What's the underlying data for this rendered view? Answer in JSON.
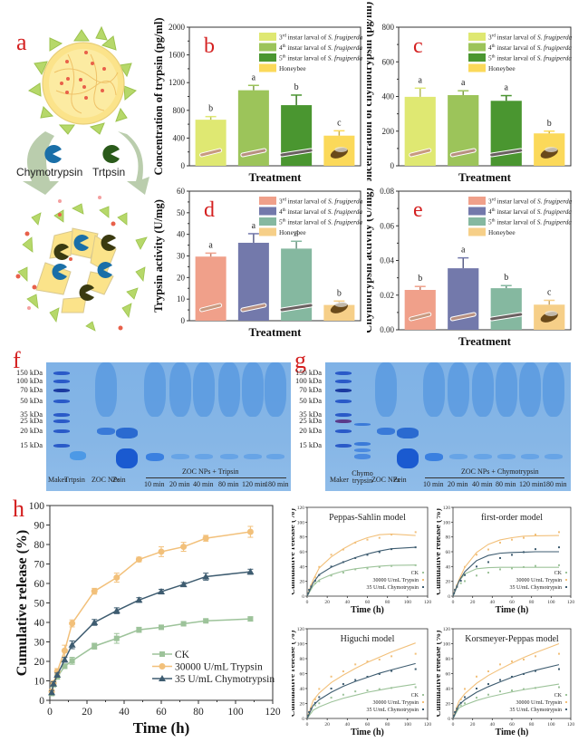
{
  "panels": {
    "a": {
      "letter": "a",
      "labels": [
        "Chymotrypsin",
        "Trtpsin"
      ],
      "icons": [
        "zein-nanoparticle-icon",
        "enzyme-pacman-icon",
        "degraded-nanoparticle-icon"
      ]
    },
    "f": {
      "letter": "f",
      "markers": [
        "150 kDa",
        "100 kDa",
        "70 kDa",
        "50 kDa",
        "35 kDa",
        "25 kDa",
        "20 kDa",
        "15 kDa"
      ],
      "lanes": [
        "Maker",
        "Trtpsin",
        "ZOC NPs",
        "Zein"
      ],
      "group_label": "ZOC NPs + Tripsin",
      "times": [
        "10 min",
        "20 min",
        "40 min",
        "80 min",
        "120 min",
        "180 min"
      ]
    },
    "g": {
      "letter": "g",
      "markers": [
        "150 kDa",
        "100 kDa",
        "70 kDa",
        "50 kDa",
        "35 kDa",
        "25 kDa",
        "20 kDa",
        "15 kDa"
      ],
      "lanes": [
        "Maker",
        "Chymo trypsin",
        "ZOC NPs",
        "Zein"
      ],
      "group_label": "ZOC NPs + Chymotrypsin",
      "times": [
        "10 min",
        "20 min",
        "40 min",
        "80 min",
        "120 min",
        "180 min"
      ]
    }
  },
  "chart_data": [
    {
      "id": "b",
      "letter": "b",
      "type": "bar",
      "title": "",
      "xlabel": "Treatment",
      "ylabel": "Concentration of trypsin (pg/ml)",
      "ylim": [
        0,
        2000
      ],
      "yticks": [
        0,
        400,
        800,
        1200,
        1600,
        2000
      ],
      "categories": [
        "3rd instar larval of S. frugiperda",
        "4th instar larval of S. frugiperda",
        "5th instar larval of S. frugiperda",
        "Honeybee"
      ],
      "legend": [
        {
          "pre": "3",
          "sup": "rd",
          "text": " instar larval of ",
          "ital": "S. frugiperda",
          "color": "#dfe872"
        },
        {
          "pre": "4",
          "sup": "th",
          "text": " instar larval of ",
          "ital": "S. frugiperda",
          "color": "#9cc45a"
        },
        {
          "pre": "5",
          "sup": "th",
          "text": " instar larval of ",
          "ital": "S. frugiperda",
          "color": "#4a9630"
        },
        {
          "pre": "Honeybee",
          "sup": "",
          "text": "",
          "ital": "",
          "color": "#fbd95a"
        }
      ],
      "values": [
        665,
        1090,
        875,
        435
      ],
      "errors": [
        45,
        70,
        145,
        70
      ],
      "letters": [
        "b",
        "a",
        "b",
        "c"
      ],
      "legend_position": "top-right"
    },
    {
      "id": "c",
      "letter": "c",
      "type": "bar",
      "xlabel": "Treatment",
      "ylabel": "Concentration of chymotrypsin (pg/ml)",
      "ylim": [
        0,
        800
      ],
      "yticks": [
        0,
        200,
        400,
        600,
        800
      ],
      "categories": [
        "3rd instar larval of S. frugiperda",
        "4th instar larval of S. frugiperda",
        "5th instar larval of S. frugiperda",
        "Honeybee"
      ],
      "legend": [
        {
          "pre": "3",
          "sup": "rd",
          "text": " instar larval of ",
          "ital": "S. frugiperda",
          "color": "#dfe872"
        },
        {
          "pre": "4",
          "sup": "th",
          "text": " instar larval of ",
          "ital": "S. frugiperda",
          "color": "#9cc45a"
        },
        {
          "pre": "5",
          "sup": "th",
          "text": " instar larval of ",
          "ital": "S. frugiperda",
          "color": "#4a9630"
        },
        {
          "pre": "Honeybee",
          "sup": "",
          "text": "",
          "ital": "",
          "color": "#fbd95a"
        }
      ],
      "values": [
        398,
        408,
        375,
        187
      ],
      "errors": [
        50,
        25,
        30,
        13
      ],
      "letters": [
        "a",
        "a",
        "a",
        "b"
      ],
      "legend_position": "top-right"
    },
    {
      "id": "d",
      "letter": "d",
      "type": "bar",
      "xlabel": "Treatment",
      "ylabel": "Trypsin activity (U/mg)",
      "ylim": [
        0,
        60
      ],
      "yticks": [
        0,
        10,
        20,
        30,
        40,
        50,
        60
      ],
      "categories": [
        "3rd instar larval of S. frugiperda",
        "4th instar larval of S. frugiperda",
        "5th instar larval of S. frugiperda",
        "Honeybee"
      ],
      "legend": [
        {
          "pre": "3",
          "sup": "rd",
          "text": " instar larval of ",
          "ital": "S. frugiperda",
          "color": "#f0a08a"
        },
        {
          "pre": "4",
          "sup": "th",
          "text": " instar larval of ",
          "ital": "S. frugiperda",
          "color": "#7379ab"
        },
        {
          "pre": "5",
          "sup": "th",
          "text": " instar larval of ",
          "ital": "S. frugiperda",
          "color": "#85b8a0"
        },
        {
          "pre": "Honeybee",
          "sup": "",
          "text": "",
          "ital": "",
          "color": "#f6cf88"
        }
      ],
      "values": [
        29.7,
        36.1,
        33.4,
        7.3
      ],
      "errors": [
        1.6,
        4.2,
        3.4,
        1.8
      ],
      "letters": [
        "a",
        "a",
        "a",
        "b"
      ],
      "legend_position": "top-right"
    },
    {
      "id": "e",
      "letter": "e",
      "type": "bar",
      "xlabel": "Treatment",
      "ylabel": "Chymotrypsin activity (U/mg)",
      "ylim": [
        0,
        0.08
      ],
      "yticks": [
        0.0,
        0.02,
        0.04,
        0.06,
        0.08
      ],
      "categories": [
        "3rd instar larval of S. frugiperda",
        "4th instar larval of S. frugiperda",
        "5th instar larval of S. frugiperda",
        "Honeybee"
      ],
      "legend": [
        {
          "pre": "3",
          "sup": "rd",
          "text": " instar larval of ",
          "ital": "S. frugiperda",
          "color": "#f0a08a"
        },
        {
          "pre": "4",
          "sup": "th",
          "text": " instar larval of ",
          "ital": "S. frugiperda",
          "color": "#7379ab"
        },
        {
          "pre": "5",
          "sup": "th",
          "text": " instar larval of ",
          "ital": "S. frugiperda",
          "color": "#85b8a0"
        },
        {
          "pre": "Honeybee",
          "sup": "",
          "text": "",
          "ital": "",
          "color": "#f6cf88"
        }
      ],
      "values": [
        0.023,
        0.0355,
        0.024,
        0.0145
      ],
      "errors": [
        0.002,
        0.006,
        0.0015,
        0.0025
      ],
      "letters": [
        "b",
        "a",
        "b",
        "c"
      ],
      "legend_position": "top-right"
    },
    {
      "id": "h",
      "letter": "h",
      "type": "line",
      "xlabel": "Time (h)",
      "ylabel": "Cumulative release (%)",
      "xlim": [
        0,
        120
      ],
      "ylim": [
        0,
        100
      ],
      "xticks": [
        0,
        20,
        40,
        60,
        80,
        100,
        120
      ],
      "yticks": [
        0,
        10,
        20,
        30,
        40,
        50,
        60,
        70,
        80,
        90,
        100
      ],
      "x": [
        1,
        2,
        4,
        8,
        12,
        24,
        36,
        48,
        60,
        72,
        84,
        108
      ],
      "series": [
        {
          "name": "CK",
          "color": "#9dc39a",
          "marker": "square",
          "values": [
            3.5,
            8,
            12,
            17.5,
            20.3,
            27.8,
            31.8,
            36.2,
            37.5,
            39.3,
            40.8,
            41.8
          ],
          "errors": [
            1,
            1,
            1,
            1.2,
            1.8,
            1.5,
            2.5,
            1.3,
            1,
            1,
            0.8,
            1
          ]
        },
        {
          "name": "30000 U/mL Trypsin",
          "color": "#f2c07a",
          "marker": "circle",
          "values": [
            4.5,
            8.8,
            14.8,
            25.5,
            39.5,
            56,
            63,
            72.3,
            76.3,
            78.8,
            83.2,
            86.5
          ],
          "errors": [
            1.2,
            1.2,
            1.5,
            2.8,
            1.8,
            1.5,
            2.3,
            1.2,
            2.5,
            2.3,
            1.5,
            2.8
          ]
        },
        {
          "name": "35 U/mL Chymotrypsin",
          "color": "#3e5c70",
          "marker": "triangle",
          "values": [
            4,
            8.5,
            13,
            20.8,
            28.5,
            40,
            46,
            51.5,
            55.8,
            59.5,
            63.5,
            66
          ],
          "errors": [
            1,
            1,
            1,
            1.2,
            2,
            1.5,
            1.5,
            1.2,
            1.2,
            1,
            1.8,
            1.3
          ]
        }
      ],
      "legend_position": "bottom-right"
    },
    {
      "id": "peppas",
      "type": "scatter+fit",
      "title": "Peppas-Sahlin model",
      "xlabel": "Time (h)",
      "ylabel": "Cumulative release (%)",
      "xlim": [
        0,
        120
      ],
      "ylim": [
        0,
        120
      ],
      "xticks": [
        0,
        20,
        40,
        60,
        80,
        100,
        120
      ],
      "yticks": [
        0,
        20,
        40,
        60,
        80,
        100,
        120
      ],
      "fit_series": [
        {
          "name": "CK",
          "color": "#9dc39a",
          "fit": [
            0,
            14,
            22,
            29,
            34,
            37,
            39,
            40.5,
            41.5,
            42
          ]
        },
        {
          "name": "30000 U/mL Trypsin",
          "color": "#f2c07a",
          "fit": [
            0,
            22,
            38,
            53,
            64,
            73,
            79,
            83,
            84,
            82
          ]
        },
        {
          "name": "35 U/mL Chymotrypsin",
          "color": "#3e5c70",
          "fit": [
            0,
            18,
            29,
            39,
            46,
            52,
            57,
            61,
            64,
            66
          ]
        }
      ],
      "fit_x": [
        0,
        6,
        12,
        24,
        36,
        48,
        60,
        72,
        84,
        108
      ],
      "legend": [
        "CK",
        "30000 U/mL Trypsin",
        "35 U/mL Chymotrypsin"
      ]
    },
    {
      "id": "first",
      "type": "scatter+fit",
      "title": "first-order model",
      "xlabel": "Time (h)",
      "ylabel": "Cumulative release (%)",
      "xlim": [
        0,
        120
      ],
      "ylim": [
        0,
        120
      ],
      "xticks": [
        0,
        20,
        40,
        60,
        80,
        100,
        120
      ],
      "yticks": [
        0,
        20,
        40,
        60,
        80,
        100,
        120
      ],
      "fit_series": [
        {
          "name": "CK",
          "color": "#9dc39a",
          "fit": [
            0,
            20,
            30,
            37,
            38.5,
            39,
            39,
            39,
            39,
            39
          ]
        },
        {
          "name": "30000 U/mL Trypsin",
          "color": "#f2c07a",
          "fit": [
            0,
            22,
            39,
            59,
            70,
            76,
            79,
            81,
            81.5,
            82
          ]
        },
        {
          "name": "35 U/mL Chymotrypsin",
          "color": "#3e5c70",
          "fit": [
            0,
            20,
            33,
            48,
            55,
            58,
            59,
            59.5,
            60,
            60
          ]
        }
      ],
      "fit_x": [
        0,
        6,
        12,
        24,
        36,
        48,
        60,
        72,
        84,
        108
      ],
      "legend": [
        "CK",
        "30000 U/mL Trypsin",
        "35 U/mL Chymotrypsin"
      ]
    },
    {
      "id": "higuchi",
      "type": "scatter+fit",
      "title": "Higuchi model",
      "xlabel": "Time (h)",
      "ylabel": "Cumulative release (%)",
      "xlim": [
        0,
        120
      ],
      "ylim": [
        0,
        120
      ],
      "xticks": [
        0,
        20,
        40,
        60,
        80,
        100,
        120
      ],
      "yticks": [
        0,
        20,
        40,
        60,
        80,
        100,
        120
      ],
      "fit_series": [
        {
          "name": "CK",
          "color": "#9dc39a",
          "fit": [
            0,
            11,
            15.5,
            22,
            27,
            31,
            35,
            38,
            41,
            46
          ]
        },
        {
          "name": "30000 U/mL Trypsin",
          "color": "#f2c07a",
          "fit": [
            0,
            24,
            34,
            48,
            58,
            67,
            75,
            82,
            89,
            101
          ]
        },
        {
          "name": "35 U/mL Chymotrypsin",
          "color": "#3e5c70",
          "fit": [
            0,
            17.5,
            25,
            35,
            43,
            49.5,
            55,
            60.5,
            65,
            73.5
          ]
        }
      ],
      "fit_x": [
        0,
        6,
        12,
        24,
        36,
        48,
        60,
        72,
        84,
        108
      ],
      "legend": [
        "CK",
        "30000 U/mL Trypsin",
        "35 U/mL Chymotrypsin"
      ]
    },
    {
      "id": "korsmeyer",
      "type": "scatter+fit",
      "title": "Korsmeyer-Peppas model",
      "xlabel": "Time (h)",
      "ylabel": "Cumulative release (%)",
      "xlim": [
        0,
        120
      ],
      "ylim": [
        0,
        120
      ],
      "xticks": [
        0,
        20,
        40,
        60,
        80,
        100,
        120
      ],
      "yticks": [
        0,
        20,
        40,
        60,
        80,
        100,
        120
      ],
      "fit_series": [
        {
          "name": "CK",
          "color": "#9dc39a",
          "fit": [
            0,
            14,
            18,
            24,
            28.5,
            32,
            35.5,
            38.5,
            41,
            46
          ]
        },
        {
          "name": "30000 U/mL Trypsin",
          "color": "#f2c07a",
          "fit": [
            0,
            23,
            33,
            47,
            57.5,
            66,
            74,
            81.5,
            88,
            100
          ]
        },
        {
          "name": "35 U/mL Chymotrypsin",
          "color": "#3e5c70",
          "fit": [
            0,
            18,
            25,
            35,
            42.5,
            49,
            55,
            60,
            64.5,
            72
          ]
        }
      ],
      "fit_x": [
        0,
        6,
        12,
        24,
        36,
        48,
        60,
        72,
        84,
        108
      ],
      "legend": [
        "CK",
        "30000 U/mL Trypsin",
        "35 U/mL Chymotrypsin"
      ]
    }
  ]
}
